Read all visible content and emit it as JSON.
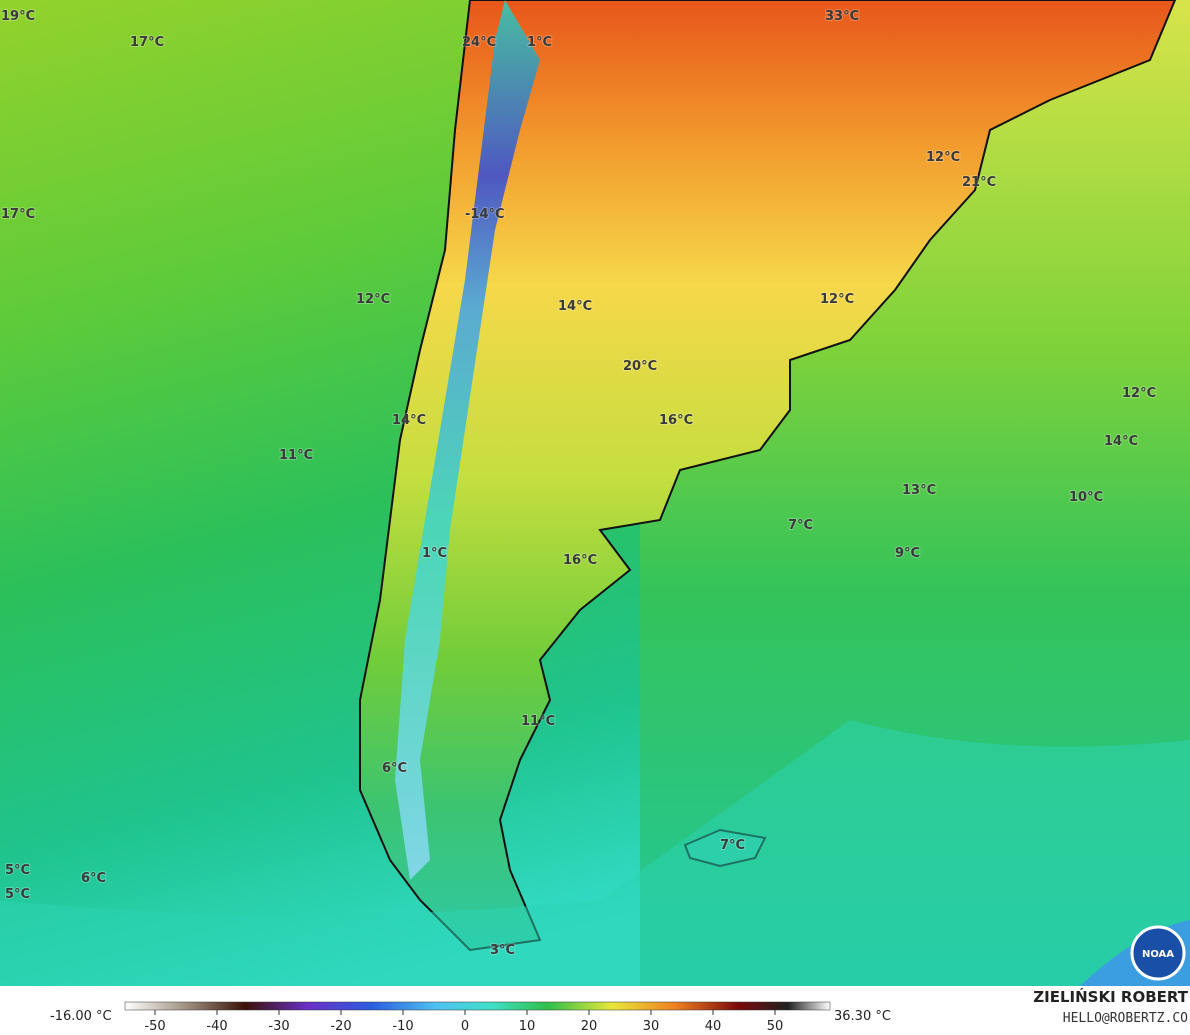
{
  "map": {
    "labels": [
      "19°C",
      "17°C",
      "24°C",
      "1°C",
      "33°C",
      "17°C",
      "-14°C",
      "12°C",
      "21°C",
      "12°C",
      "14°C",
      "12°C",
      "20°C",
      "12°C",
      "14°C",
      "16°C",
      "14°C",
      "11°C",
      "13°C",
      "10°C",
      "7°C",
      "9°C",
      "1°C",
      "16°C",
      "11°C",
      "6°C",
      "7°C",
      "5°C",
      "6°C",
      "5°C",
      "3°C"
    ],
    "colorbar": {
      "min_label": "-16.00 °C",
      "max_label": "36.30 °C",
      "ticks": [
        -50,
        -40,
        -30,
        -20,
        -10,
        0,
        10,
        20,
        30,
        40,
        50
      ]
    },
    "credit": {
      "name": "ZIELIŃSKI ROBERT",
      "contact": "HELLO@ROBERTZ.CO"
    },
    "logo": "NOAA"
  }
}
